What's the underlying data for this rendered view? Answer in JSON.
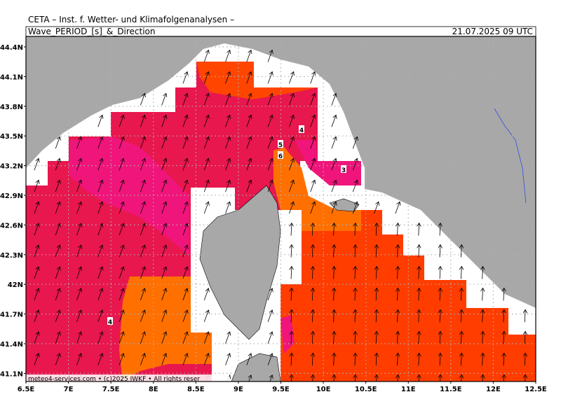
{
  "header": {
    "title": "CETA – Inst. f. Wetter- und Klimafolgenanalysen –",
    "parameter": "Wave_PERIOD_[s]_&_Direction",
    "valid_time": "21.07.2025 09 UTC"
  },
  "map": {
    "lat_labels": [
      "44.4N",
      "44.1N",
      "43.8N",
      "43.5N",
      "43.2N",
      "42.9N",
      "42.6N",
      "42.3N",
      "42N",
      "41.7N",
      "41.4N",
      "41.1N"
    ],
    "lon_labels": [
      "6.5E",
      "7E",
      "7.5E",
      "8E",
      "8.5E",
      "9E",
      "9.5E",
      "10E",
      "10.5E",
      "11E",
      "11.5E",
      "12E",
      "12.5E"
    ],
    "contour_labels": [
      "4",
      "5",
      "6",
      "3",
      "4"
    ],
    "footer": "meteo4-services.com  •  (c)2025 IWKF  •  All rights reser"
  }
}
